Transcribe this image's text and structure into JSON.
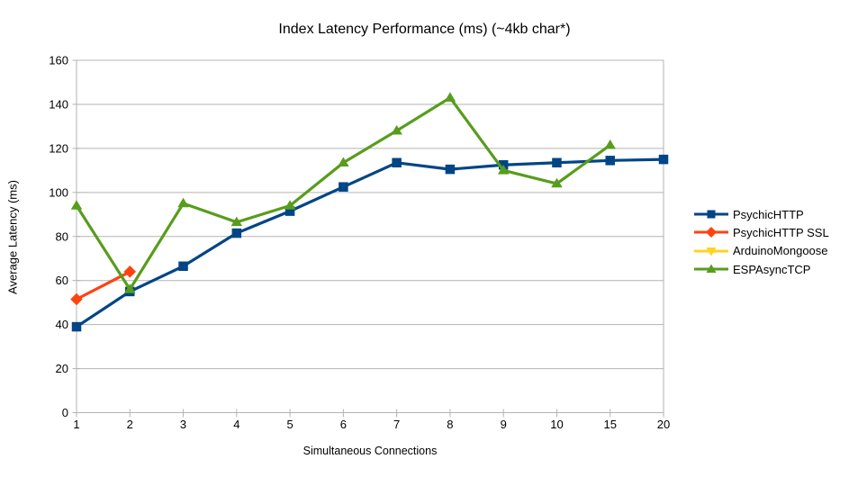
{
  "chart_data": {
    "type": "line",
    "title": "Index Latency Performance (ms) (~4kb char*)",
    "xlabel": "Simultaneous Connections",
    "ylabel": "Average Latency (ms)",
    "categories": [
      "1",
      "2",
      "3",
      "4",
      "5",
      "6",
      "7",
      "8",
      "9",
      "10",
      "15",
      "20"
    ],
    "ylim": [
      0,
      160
    ],
    "ytick_step": 20,
    "grid": true,
    "legend_position": "right",
    "colors": {
      "gridline": "#b3b3b3",
      "axis": "#b3b3b3",
      "text": "#000000"
    },
    "series": [
      {
        "name": "PsychicHTTP",
        "color": "#004586",
        "marker": "square",
        "values": [
          39,
          55,
          66.5,
          81.5,
          91.5,
          102.5,
          113.5,
          110.5,
          112.5,
          113.5,
          114.5,
          115
        ]
      },
      {
        "name": "PsychicHTTP SSL",
        "color": "#ff420e",
        "marker": "diamond",
        "values": [
          51.5,
          64,
          null,
          null,
          null,
          null,
          null,
          null,
          null,
          null,
          null,
          null
        ]
      },
      {
        "name": "ArduinoMongoose",
        "color": "#ffd320",
        "marker": "triangle-down",
        "values": [
          null,
          null,
          null,
          null,
          null,
          null,
          null,
          null,
          null,
          null,
          null,
          null
        ]
      },
      {
        "name": "ESPAsyncTCP",
        "color": "#579d1c",
        "marker": "triangle-up",
        "values": [
          94,
          56,
          95,
          86.5,
          94,
          113.5,
          128,
          143,
          110,
          104,
          121.5,
          null
        ]
      }
    ]
  }
}
